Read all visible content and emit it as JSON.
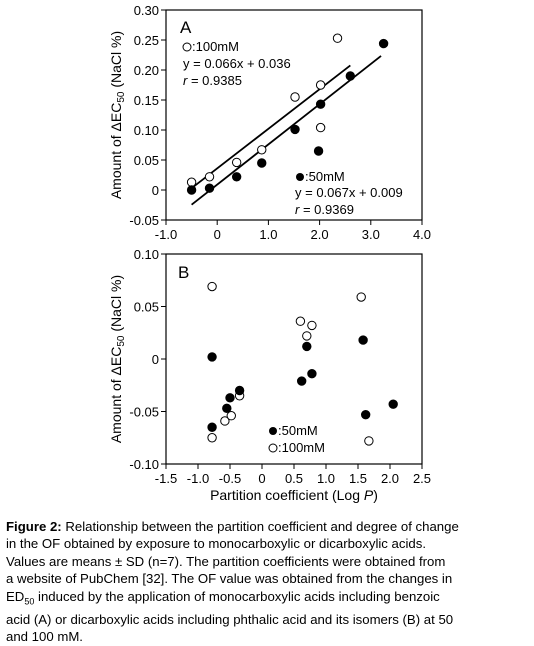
{
  "chart_data": [
    {
      "type": "scatter",
      "panel_label": "A",
      "ylabel": "Amount of ΔEC",
      "ylabel_sub": "50",
      "ylabel_suffix": " (NaCl %)",
      "xlim": [
        -1.0,
        4.0
      ],
      "ylim": [
        -0.05,
        0.3
      ],
      "xticks": [
        "-1.0",
        "0",
        "1.0",
        "2.0",
        "3.0",
        "4.0"
      ],
      "xtick_values": [
        -1,
        0,
        1,
        2,
        3,
        4
      ],
      "yticks": [
        "-0.05",
        "0",
        "0.05",
        "0.10",
        "0.15",
        "0.20",
        "0.25",
        "0.30"
      ],
      "ytick_values": [
        -0.05,
        0,
        0.05,
        0.1,
        0.15,
        0.2,
        0.25,
        0.3
      ],
      "series": [
        {
          "name": ":100mM",
          "marker": "open",
          "equation": "y = 0.066x + 0.036",
          "r_label": "r",
          "r_value": " = 0.9385",
          "fit": {
            "slope": 0.066,
            "intercept": 0.036,
            "x_range": [
              -0.5,
              2.6
            ]
          },
          "points": [
            [
              -0.5,
              0.013
            ],
            [
              -0.15,
              0.022
            ],
            [
              0.38,
              0.046
            ],
            [
              0.87,
              0.067
            ],
            [
              1.52,
              0.155
            ],
            [
              2.02,
              0.104
            ],
            [
              2.02,
              0.175
            ],
            [
              2.35,
              0.253
            ]
          ]
        },
        {
          "name": ":50mM",
          "marker": "filled",
          "equation": "y = 0.067x + 0.009",
          "r_label": "r",
          "r_value": " = 0.9369",
          "fit": {
            "slope": 0.067,
            "intercept": 0.009,
            "x_range": [
              -0.5,
              3.2
            ]
          },
          "points": [
            [
              -0.5,
              0.0
            ],
            [
              -0.15,
              0.003
            ],
            [
              0.38,
              0.022
            ],
            [
              0.87,
              0.045
            ],
            [
              1.52,
              0.101
            ],
            [
              1.98,
              0.065
            ],
            [
              2.02,
              0.143
            ],
            [
              2.6,
              0.19
            ],
            [
              3.25,
              0.244
            ]
          ]
        }
      ]
    },
    {
      "type": "scatter",
      "panel_label": "B",
      "xlabel": "Partition coefficient (Log ",
      "xlabel_italic": "P",
      "xlabel_suffix": ")",
      "ylabel": "Amount of ΔEC",
      "ylabel_sub": "50",
      "ylabel_suffix": " (NaCl %)",
      "xlim": [
        -1.5,
        2.5
      ],
      "ylim": [
        -0.1,
        0.1
      ],
      "xticks": [
        "-1.5",
        "-1.0",
        "-0.5",
        "0",
        "0.5",
        "1.0",
        "1.5",
        "2.0",
        "2.5"
      ],
      "xtick_values": [
        -1.5,
        -1.0,
        -0.5,
        0,
        0.5,
        1.0,
        1.5,
        2.0,
        2.5
      ],
      "yticks": [
        "-0.10",
        "-0.05",
        "0",
        "0.05",
        "0.10"
      ],
      "ytick_values": [
        -0.1,
        -0.05,
        0,
        0.05,
        0.1
      ],
      "series": [
        {
          "name": ":50mM",
          "marker": "filled",
          "points": [
            [
              -0.78,
              0.002
            ],
            [
              -0.78,
              -0.065
            ],
            [
              -0.55,
              -0.047
            ],
            [
              -0.5,
              -0.037
            ],
            [
              -0.35,
              -0.03
            ],
            [
              0.62,
              -0.021
            ],
            [
              0.7,
              0.012
            ],
            [
              0.78,
              -0.014
            ],
            [
              1.58,
              0.018
            ],
            [
              1.62,
              -0.053
            ],
            [
              2.05,
              -0.043
            ]
          ]
        },
        {
          "name": ":100mM",
          "marker": "open",
          "points": [
            [
              -0.78,
              0.069
            ],
            [
              -0.78,
              -0.075
            ],
            [
              -0.58,
              -0.059
            ],
            [
              -0.48,
              -0.054
            ],
            [
              -0.35,
              -0.035
            ],
            [
              0.6,
              0.036
            ],
            [
              0.7,
              0.022
            ],
            [
              0.78,
              0.032
            ],
            [
              1.55,
              0.059
            ],
            [
              1.67,
              -0.078
            ]
          ]
        }
      ]
    }
  ],
  "caption": {
    "lead": "Figure 2:",
    "line1_rest": " Relationship between the partition coefficient and degree of change",
    "line2": "in the OF obtained by exposure to monocarboxylic or dicarboxylic acids.",
    "line3": "Values are means ± SD (n=7). The partition coefficients were obtained from",
    "line4": "a website of PubChem [32]. The OF value was obtained from the changes in",
    "line5_pre": "ED",
    "line5_sub": "50",
    "line5_post": " induced by the application of monocarboxylic acids including benzoic",
    "line6": "acid (A) or dicarboxylic acids including phthalic acid and its isomers (B) at 50",
    "line7": "and 100 mM."
  }
}
